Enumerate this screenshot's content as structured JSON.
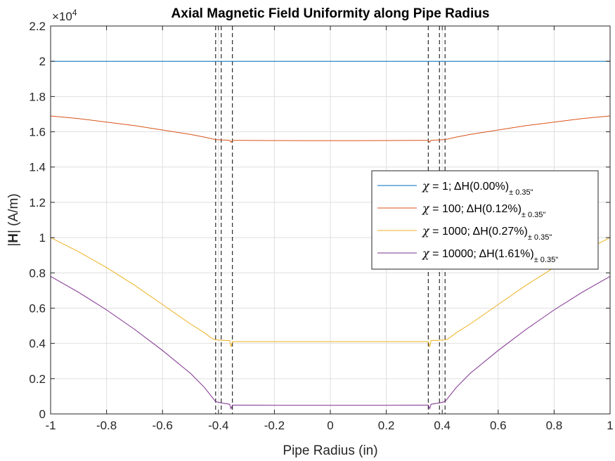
{
  "chart_data": {
    "type": "line",
    "title": "Axial Magnetic Field Uniformity along Pipe Radius",
    "xlabel": "Pipe Radius (in)",
    "ylabel": "|H| (A/m)",
    "ylabel_bold_part": "H",
    "y_exponent_label": "×10",
    "y_exponent_power": "4",
    "xlim": [
      -1,
      1
    ],
    "ylim": [
      0,
      22000
    ],
    "x_ticks": [
      -1,
      -0.8,
      -0.6,
      -0.4,
      -0.2,
      0,
      0.2,
      0.4,
      0.6,
      0.8,
      1
    ],
    "x_tick_labels": [
      "-1",
      "-0.8",
      "-0.6",
      "-0.4",
      "-0.2",
      "0",
      "0.2",
      "0.4",
      "0.6",
      "0.8",
      "1"
    ],
    "y_ticks": [
      0,
      2000,
      4000,
      6000,
      8000,
      10000,
      12000,
      14000,
      16000,
      18000,
      20000,
      22000
    ],
    "y_tick_labels": [
      "0",
      "0.2",
      "0.4",
      "0.6",
      "0.8",
      "1",
      "1.2",
      "1.4",
      "1.6",
      "1.8",
      "2",
      "2.2"
    ],
    "grid": true,
    "legend_position": "right",
    "vertical_dashed_lines_x": [
      -0.41,
      -0.39,
      -0.35,
      0.35,
      0.39,
      0.41
    ],
    "series": [
      {
        "name": "χ = 1; ΔH(0.00%)",
        "legend_chi": "χ",
        "legend_text": " = 1; ΔH(0.00%)",
        "legend_sub": "± 0.35\"",
        "color": "#0072BD",
        "x": [
          -1,
          -0.5,
          -0.41,
          -0.35,
          0,
          0.35,
          0.41,
          0.5,
          1
        ],
        "y": [
          20000,
          20000,
          20000,
          20000,
          20000,
          20000,
          20000,
          20000,
          20000
        ]
      },
      {
        "name": "χ = 100; ΔH(0.12%)",
        "legend_chi": "χ",
        "legend_text": " = 100; ΔH(0.12%)",
        "legend_sub": "± 0.35\"",
        "color": "#D95319",
        "x": [
          -1,
          -0.9,
          -0.8,
          -0.7,
          -0.6,
          -0.5,
          -0.45,
          -0.41,
          -0.39,
          -0.36,
          -0.355,
          -0.35,
          -0.3,
          -0.2,
          -0.1,
          0,
          0.1,
          0.2,
          0.3,
          0.35,
          0.355,
          0.36,
          0.39,
          0.41,
          0.45,
          0.5,
          0.6,
          0.7,
          0.8,
          0.9,
          1
        ],
        "y": [
          16900,
          16750,
          16550,
          16350,
          16100,
          15850,
          15700,
          15560,
          15540,
          15520,
          15400,
          15510,
          15510,
          15505,
          15500,
          15500,
          15500,
          15505,
          15510,
          15510,
          15400,
          15520,
          15540,
          15560,
          15700,
          15850,
          16100,
          16350,
          16550,
          16750,
          16900
        ]
      },
      {
        "name": "χ = 1000; ΔH(0.27%)",
        "legend_chi": "χ",
        "legend_text": " = 1000; ΔH(0.27%)",
        "legend_sub": "± 0.35\"",
        "color": "#EDB120",
        "x": [
          -1,
          -0.9,
          -0.8,
          -0.7,
          -0.6,
          -0.5,
          -0.45,
          -0.42,
          -0.41,
          -0.39,
          -0.36,
          -0.355,
          -0.35,
          -0.3,
          -0.2,
          -0.1,
          0,
          0.1,
          0.2,
          0.3,
          0.35,
          0.355,
          0.36,
          0.39,
          0.41,
          0.42,
          0.45,
          0.5,
          0.6,
          0.7,
          0.8,
          0.9,
          1
        ],
        "y": [
          10000,
          9200,
          8300,
          7300,
          6200,
          5100,
          4600,
          4250,
          4200,
          4180,
          4160,
          3800,
          4100,
          4100,
          4100,
          4100,
          4100,
          4100,
          4100,
          4100,
          4100,
          3800,
          4160,
          4180,
          4200,
          4250,
          4600,
          5100,
          6200,
          7300,
          8300,
          9200,
          10000
        ]
      },
      {
        "name": "χ = 10000; ΔH(1.61%)",
        "legend_chi": "χ",
        "legend_text": " = 10000; ΔH(1.61%)",
        "legend_sub": "± 0.35\"",
        "color": "#7E2F8E",
        "x": [
          -1,
          -0.9,
          -0.8,
          -0.7,
          -0.6,
          -0.5,
          -0.45,
          -0.42,
          -0.41,
          -0.39,
          -0.36,
          -0.355,
          -0.35,
          -0.3,
          -0.2,
          -0.1,
          0,
          0.1,
          0.2,
          0.3,
          0.35,
          0.355,
          0.36,
          0.39,
          0.41,
          0.42,
          0.45,
          0.5,
          0.6,
          0.7,
          0.8,
          0.9,
          1
        ],
        "y": [
          7800,
          6900,
          5900,
          4800,
          3600,
          2300,
          1500,
          900,
          700,
          620,
          550,
          300,
          500,
          500,
          490,
          490,
          490,
          490,
          490,
          500,
          500,
          300,
          550,
          620,
          700,
          900,
          1500,
          2300,
          3600,
          4800,
          5900,
          6900,
          7800
        ]
      }
    ]
  }
}
